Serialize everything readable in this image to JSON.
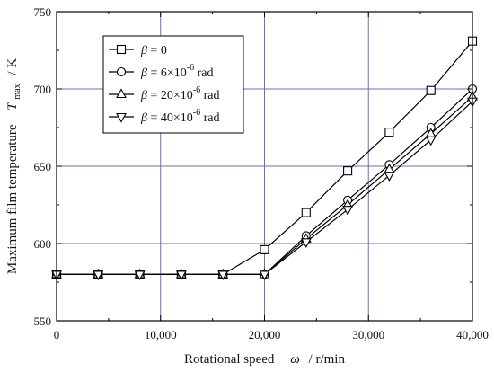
{
  "chart_data": {
    "type": "line",
    "x": [
      0,
      4000,
      8000,
      12000,
      16000,
      20000,
      24000,
      28000,
      32000,
      36000,
      40000
    ],
    "xlim": [
      0,
      40000
    ],
    "ylim": [
      550,
      750
    ],
    "xticks": [
      0,
      10000,
      20000,
      30000,
      40000
    ],
    "xtick_labels": [
      "0",
      "10,000",
      "20,000",
      "30,000",
      "40,000"
    ],
    "yticks": [
      550,
      600,
      650,
      700,
      750
    ],
    "ytick_labels": [
      "550",
      "600",
      "650",
      "700",
      "750"
    ],
    "grid": true,
    "legend_position": "top-left",
    "axis_color": "#000000",
    "grid_color": "#6b6bc8",
    "line_color": "#000000",
    "xlabel": {
      "main": "Rotational speed",
      "symbol": "ω",
      "unit": "/  r/min"
    },
    "ylabel": {
      "main": "Maximum film temperature",
      "symbol": "T",
      "sub": "max",
      "unit": "/  K"
    },
    "series": [
      {
        "name_prefix": "β",
        "name_rest": " = 0",
        "marker": "square",
        "values": [
          580,
          580,
          580,
          580,
          580,
          596,
          620,
          647,
          672,
          699,
          731
        ]
      },
      {
        "name_prefix": "β",
        "name_rest": " =   6×10",
        "name_exp": "-6",
        "name_unit": " rad",
        "marker": "circle",
        "values": [
          580,
          580,
          580,
          580,
          580,
          580,
          605,
          628,
          651,
          675,
          700
        ]
      },
      {
        "name_prefix": "β",
        "name_rest": " = 20×10",
        "name_exp": "-6",
        "name_unit": " rad",
        "marker": "triangle-up",
        "values": [
          580,
          580,
          580,
          580,
          580,
          580,
          603,
          625,
          648,
          671,
          695
        ]
      },
      {
        "name_prefix": "β",
        "name_rest": " = 40×10",
        "name_exp": "-6",
        "name_unit": " rad",
        "marker": "triangle-down",
        "values": [
          580,
          580,
          580,
          580,
          580,
          580,
          601,
          622,
          644,
          667,
          692
        ]
      }
    ]
  }
}
